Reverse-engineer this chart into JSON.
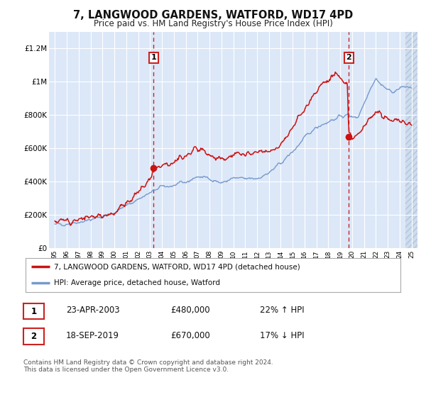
{
  "title": "7, LANGWOOD GARDENS, WATFORD, WD17 4PD",
  "subtitle": "Price paid vs. HM Land Registry's House Price Index (HPI)",
  "xlim": [
    1994.5,
    2025.5
  ],
  "ylim": [
    0,
    1300000
  ],
  "yticks": [
    0,
    200000,
    400000,
    600000,
    800000,
    1000000,
    1200000
  ],
  "ytick_labels": [
    "£0",
    "£200K",
    "£400K",
    "£600K",
    "£800K",
    "£1M",
    "£1.2M"
  ],
  "xticks": [
    1995,
    1996,
    1997,
    1998,
    1999,
    2000,
    2001,
    2002,
    2003,
    2004,
    2005,
    2006,
    2007,
    2008,
    2009,
    2010,
    2011,
    2012,
    2013,
    2014,
    2015,
    2016,
    2017,
    2018,
    2019,
    2020,
    2021,
    2022,
    2023,
    2024,
    2025
  ],
  "bg_color": "#ffffff",
  "plot_bg_color": "#dce8f8",
  "grid_color": "#ffffff",
  "red_line_color": "#cc1111",
  "blue_line_color": "#7799cc",
  "dashed_line_color": "#cc2222",
  "hatch_color": "#c0cce0",
  "hatch_start": 2024.5,
  "sale1_year": 2003.31,
  "sale1_price": 480000,
  "sale2_year": 2019.72,
  "sale2_price": 670000,
  "legend_label1": "7, LANGWOOD GARDENS, WATFORD, WD17 4PD (detached house)",
  "legend_label2": "HPI: Average price, detached house, Watford",
  "table_row1": [
    "1",
    "23-APR-2003",
    "£480,000",
    "22% ↑ HPI"
  ],
  "table_row2": [
    "2",
    "18-SEP-2019",
    "£670,000",
    "17% ↓ HPI"
  ],
  "footer": "Contains HM Land Registry data © Crown copyright and database right 2024.\nThis data is licensed under the Open Government Licence v3.0."
}
